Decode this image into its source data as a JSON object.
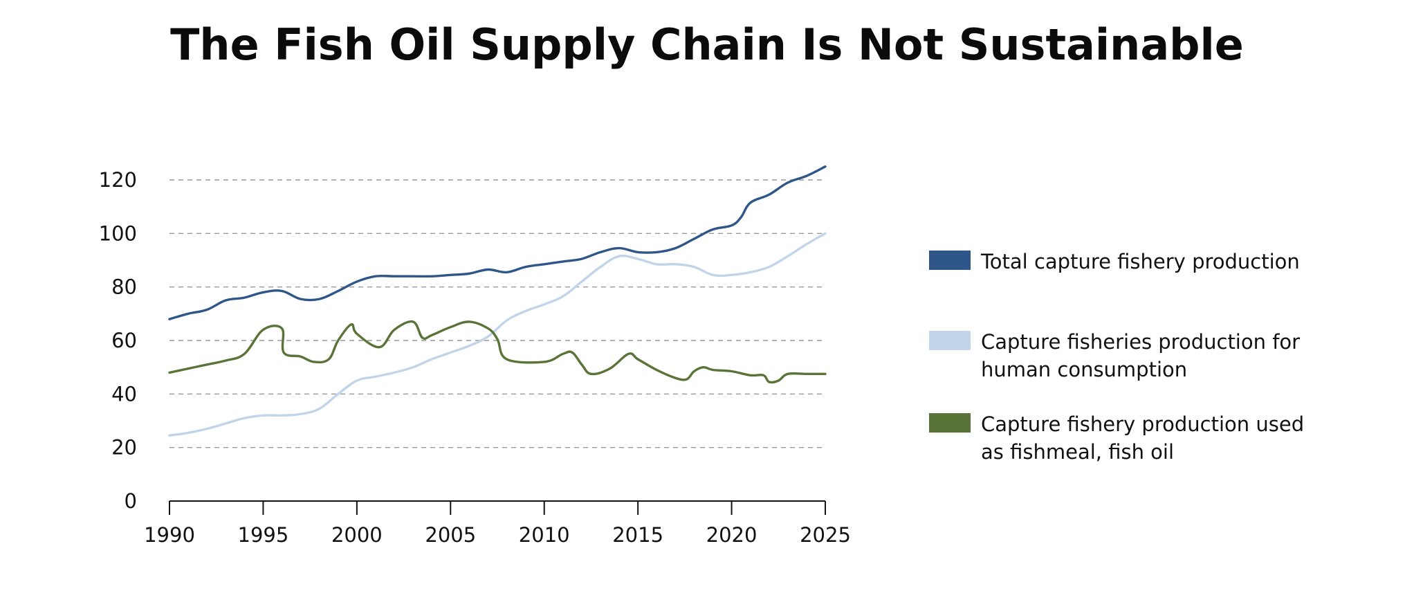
{
  "chart_data": {
    "type": "line",
    "title": "The Fish Oil Supply Chain Is Not Sustainable",
    "xlabel": "",
    "ylabel": "",
    "xlim": [
      1990,
      2025
    ],
    "ylim": [
      0,
      120
    ],
    "x_ticks": [
      "1990",
      "1995",
      "2000",
      "2005",
      "2010",
      "2015",
      "2020",
      "2025"
    ],
    "y_ticks": [
      "0",
      "20",
      "40",
      "60",
      "80",
      "100",
      "120"
    ],
    "grid": "horizontal dashed",
    "legend_position": "right",
    "series": [
      {
        "name": "Total capture fishery production",
        "color": "#2f5689",
        "x": [
          1990,
          1991,
          1992,
          1993,
          1994,
          1995,
          1996,
          1997,
          1998,
          1999,
          2000,
          2001,
          2002,
          2003,
          2004,
          2005,
          2006,
          2007,
          2008,
          2009,
          2010,
          2011,
          2012,
          2013,
          2014,
          2015,
          2016,
          2017,
          2018,
          2019,
          2020,
          2020.5,
          2021,
          2022,
          2023,
          2024,
          2025
        ],
        "values": [
          68,
          70,
          71.5,
          75,
          76,
          78,
          78.5,
          75.5,
          75.5,
          78.5,
          82,
          84,
          84,
          84,
          84,
          84.5,
          85,
          86.5,
          85.5,
          87.5,
          88.5,
          89.5,
          90.5,
          93,
          94.5,
          93,
          93,
          94.5,
          98,
          101.5,
          103,
          106,
          111.5,
          114.5,
          119,
          121.5,
          125
        ]
      },
      {
        "name": "Capture fisheries production for human consumption",
        "color": "#c2d4ea",
        "x": [
          1990,
          1991,
          1992,
          1993,
          1994,
          1995,
          1996,
          1997,
          1998,
          1999,
          2000,
          2001,
          2002,
          2003,
          2004,
          2005,
          2006,
          2007,
          2008,
          2009,
          2010,
          2011,
          2012,
          2013,
          2014,
          2015,
          2016,
          2017,
          2018,
          2019,
          2020,
          2021,
          2022,
          2023,
          2024,
          2025
        ],
        "values": [
          24.5,
          25.5,
          27,
          29,
          31,
          32,
          32,
          32.5,
          34.5,
          40,
          45,
          46.5,
          48,
          50,
          53,
          55.5,
          58,
          61.5,
          67.5,
          71,
          73.5,
          76.5,
          82,
          87.5,
          91.5,
          90.5,
          88.5,
          88.5,
          87.5,
          84.5,
          84.5,
          85.5,
          87.5,
          91.5,
          96,
          100
        ]
      },
      {
        "name": "Capture fishery production used as fishmeal, fish oil",
        "color": "#5a7339",
        "x": [
          1990,
          1991,
          1992,
          1993,
          1994,
          1995,
          1996,
          1996.1,
          1997,
          1997.7,
          1998.5,
          1999,
          1999.7,
          2000,
          2001.2,
          2002,
          2003,
          2003.5,
          2004,
          2005,
          2006,
          2007,
          2007.5,
          2008,
          2010,
          2011,
          2011.5,
          2012,
          2012.5,
          2013.5,
          2014.5,
          2015,
          2016,
          2017,
          2017.6,
          2018,
          2018.5,
          2019,
          2020,
          2021,
          2021.7,
          2022,
          2022.5,
          2023,
          2024,
          2025
        ],
        "values": [
          48,
          49.5,
          51,
          52.5,
          55,
          64,
          64.5,
          55.5,
          54,
          52,
          53,
          60,
          66,
          62.5,
          57.5,
          64,
          67,
          61,
          62,
          65,
          67,
          64.5,
          60.5,
          53,
          52,
          55,
          55.5,
          51,
          47.5,
          49.5,
          55,
          53,
          49,
          46,
          45.5,
          48.5,
          50,
          49,
          48.5,
          47,
          47,
          44.5,
          45,
          47.5,
          47.5,
          47.5
        ]
      }
    ],
    "legend": [
      {
        "lines": [
          "Total capture fishery production"
        ],
        "color": "#2f5689"
      },
      {
        "lines": [
          "Capture fisheries production for",
          "human consumption"
        ],
        "color": "#c2d4ea"
      },
      {
        "lines": [
          "Capture fishery production used",
          "as fishmeal, fish oil"
        ],
        "color": "#5a7339"
      }
    ]
  }
}
